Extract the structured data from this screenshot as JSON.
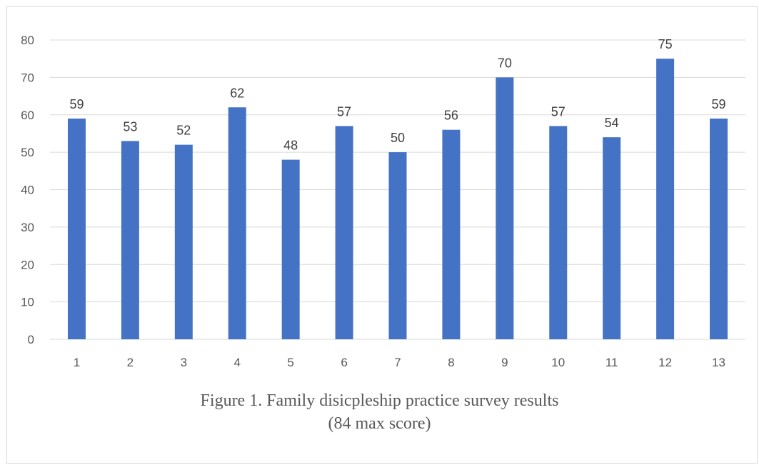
{
  "chart_data": {
    "type": "bar",
    "categories": [
      "1",
      "2",
      "3",
      "4",
      "5",
      "6",
      "7",
      "8",
      "9",
      "10",
      "11",
      "12",
      "13"
    ],
    "values": [
      59,
      53,
      52,
      62,
      48,
      57,
      50,
      56,
      70,
      57,
      54,
      75,
      59
    ],
    "data_labels": [
      "59",
      "53",
      "52",
      "62",
      "48",
      "57",
      "50",
      "56",
      "70",
      "57",
      "54",
      "75",
      "59"
    ],
    "yticks": [
      "0",
      "10",
      "20",
      "30",
      "40",
      "50",
      "60",
      "70",
      "80"
    ],
    "ylim": [
      0,
      80
    ],
    "grid": true,
    "legend": "none",
    "bar_color": "#4472c4",
    "grid_color": "#d9d9d9",
    "caption_line1": "Figure 1. Family disicpleship practice survey results",
    "caption_line2": "(84 max score)"
  }
}
